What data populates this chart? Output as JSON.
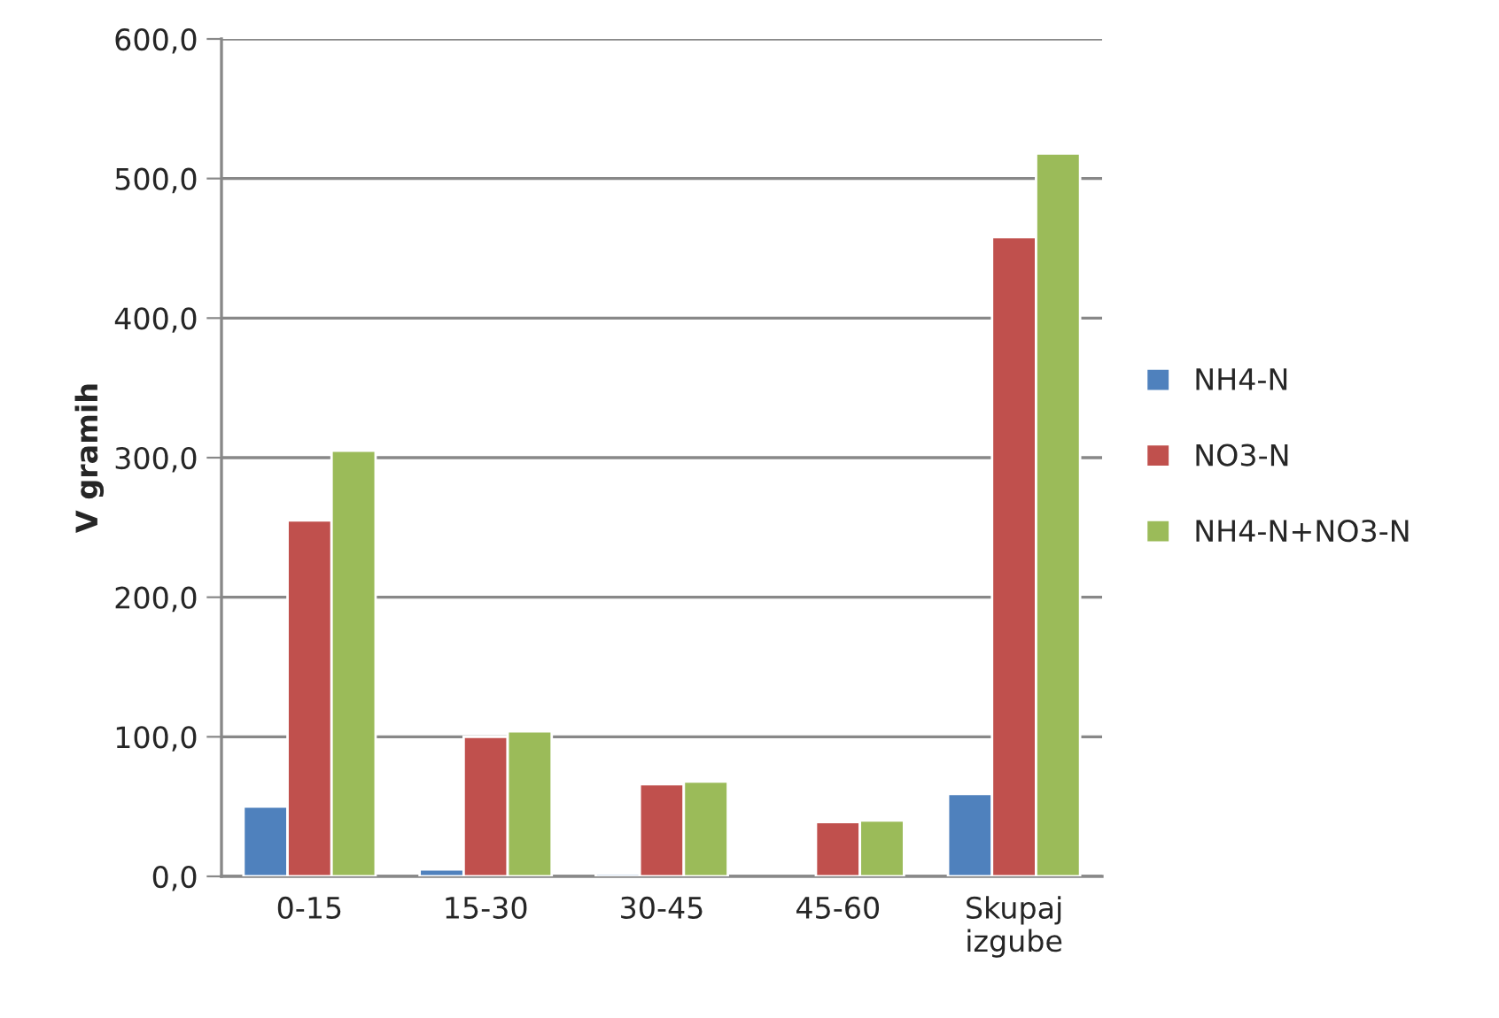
{
  "chart_data": {
    "type": "bar",
    "ylabel": "V gramih",
    "categories": [
      "0-15",
      "15-30",
      "30-45",
      "45-60",
      "Skupaj\nizgube"
    ],
    "series": [
      {
        "name": "NH4-N",
        "color": "#4f81bd",
        "values": [
          50,
          5,
          2,
          null,
          59
        ]
      },
      {
        "name": "NO3-N",
        "color": "#c0504d",
        "values": [
          255,
          100,
          66,
          39,
          458
        ]
      },
      {
        "name": "NH4-N+NO3-N",
        "color": "#9bbb59",
        "values": [
          305,
          104,
          68,
          40,
          518
        ]
      }
    ],
    "ylim": [
      0,
      600
    ],
    "yticks": [
      {
        "value": 0,
        "label": "0,0"
      },
      {
        "value": 100,
        "label": "100,0"
      },
      {
        "value": 200,
        "label": "200,0"
      },
      {
        "value": 300,
        "label": "300,0"
      },
      {
        "value": 400,
        "label": "400,0"
      },
      {
        "value": 500,
        "label": "500,0"
      },
      {
        "value": 600,
        "label": "600,0"
      }
    ],
    "grid": "y",
    "legend": "right"
  }
}
